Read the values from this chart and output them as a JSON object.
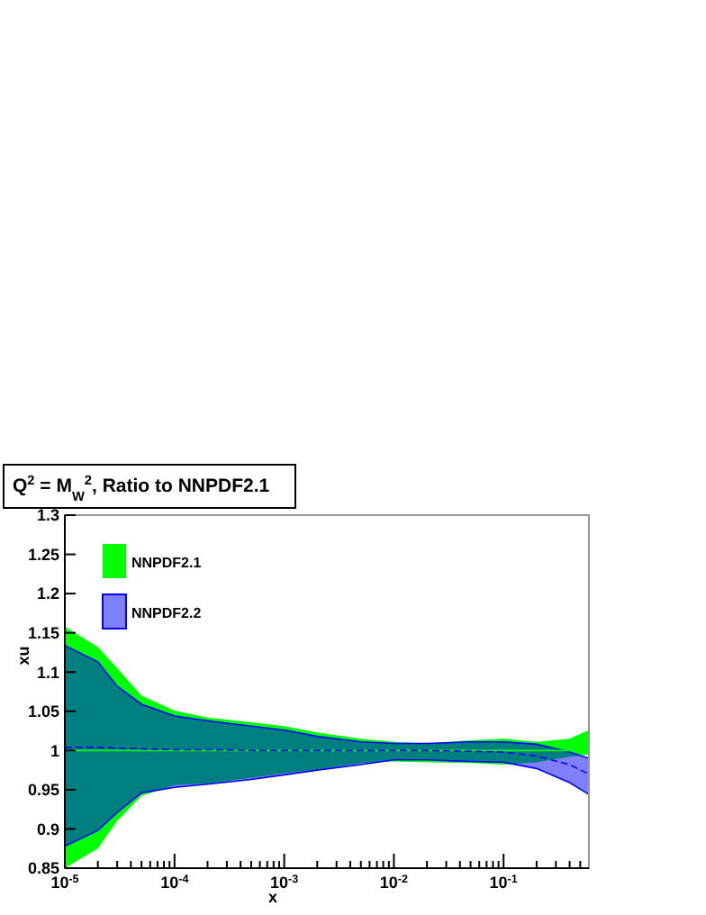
{
  "chart_data": {
    "type": "line",
    "title": "Q$^{2}$ = M$_{W}$$^{2}$, Ratio to NNPDF2.1",
    "xlabel": "x",
    "ylabel": "xu",
    "log": "x",
    "legend": "top left",
    "grid": false,
    "x": [
      1e-05,
      2e-05,
      3e-05,
      5e-05,
      0.0001,
      0.0002,
      0.0005,
      0.001,
      0.002,
      0.005,
      0.01,
      0.02,
      0.05,
      0.1,
      0.2,
      0.4,
      0.6
    ],
    "xlim": [
      1e-05,
      0.6
    ],
    "ylim": [
      0.85,
      1.3
    ],
    "xticks": [
      {
        "value": 1e-05,
        "label": "10$^{-5}$"
      },
      {
        "value": 2e-05,
        "label": null
      },
      {
        "value": 3e-05,
        "label": null
      },
      {
        "value": 4e-05,
        "label": null
      },
      {
        "value": 5e-05,
        "label": null
      },
      {
        "value": 6e-05,
        "label": null
      },
      {
        "value": 7e-05,
        "label": null
      },
      {
        "value": 8e-05,
        "label": null
      },
      {
        "value": 9e-05,
        "label": null
      },
      {
        "value": 0.0001,
        "label": "10$^{-4}$"
      },
      {
        "value": 0.0002,
        "label": null
      },
      {
        "value": 0.0003,
        "label": null
      },
      {
        "value": 0.0004,
        "label": null
      },
      {
        "value": 0.0005,
        "label": null
      },
      {
        "value": 0.0006,
        "label": null
      },
      {
        "value": 0.0007,
        "label": null
      },
      {
        "value": 0.0008,
        "label": null
      },
      {
        "value": 0.0009,
        "label": null
      },
      {
        "value": 0.001,
        "label": "10$^{-3}$"
      },
      {
        "value": 0.002,
        "label": null
      },
      {
        "value": 0.003,
        "label": null
      },
      {
        "value": 0.004,
        "label": null
      },
      {
        "value": 0.005,
        "label": null
      },
      {
        "value": 0.006,
        "label": null
      },
      {
        "value": 0.007,
        "label": null
      },
      {
        "value": 0.008,
        "label": null
      },
      {
        "value": 0.009,
        "label": null
      },
      {
        "value": 0.01,
        "label": "10$^{-2}$"
      },
      {
        "value": 0.02,
        "label": null
      },
      {
        "value": 0.03,
        "label": null
      },
      {
        "value": 0.04,
        "label": null
      },
      {
        "value": 0.05,
        "label": null
      },
      {
        "value": 0.06,
        "label": null
      },
      {
        "value": 0.07,
        "label": null
      },
      {
        "value": 0.08,
        "label": null
      },
      {
        "value": 0.09,
        "label": null
      },
      {
        "value": 0.1,
        "label": "10$^{-1}$"
      },
      {
        "value": 0.2,
        "label": null
      },
      {
        "value": 0.3,
        "label": null
      },
      {
        "value": 0.4,
        "label": null
      },
      {
        "value": 0.5,
        "label": null
      }
    ],
    "yticks": [
      0.85,
      0.9,
      0.95,
      1,
      1.05,
      1.1,
      1.15,
      1.2,
      1.25,
      1.3
    ],
    "series": [
      {
        "name": "NNPDF2.1",
        "color": "#00ff00",
        "line_style": "solid",
        "values": [
          1,
          1,
          1,
          1,
          1,
          1,
          1,
          1,
          1,
          1,
          1,
          1,
          1,
          1,
          1,
          1,
          1
        ],
        "lower": [
          0.85,
          0.875,
          0.91,
          0.942,
          0.956,
          0.958,
          0.965,
          0.971,
          0.976,
          0.984,
          0.986,
          0.985,
          0.984,
          0.982,
          0.985,
          0.992,
          0.995
        ],
        "upper": [
          1.158,
          1.132,
          1.105,
          1.07,
          1.051,
          1.042,
          1.036,
          1.031,
          1.023,
          1.015,
          1.011,
          1.009,
          1.013,
          1.015,
          1.011,
          1.015,
          1.026
        ]
      },
      {
        "name": "NNPDF2.2",
        "color": "#0000ff",
        "line_style": "dashed",
        "values": [
          1.004,
          1.004,
          1.003,
          1.002,
          1.001,
          1.001,
          1,
          1,
          1,
          1,
          1,
          1,
          0.999,
          0.998,
          0.993,
          0.982,
          0.97
        ],
        "lower": [
          0.878,
          0.898,
          0.921,
          0.946,
          0.953,
          0.957,
          0.963,
          0.969,
          0.975,
          0.982,
          0.988,
          0.988,
          0.986,
          0.985,
          0.977,
          0.959,
          0.944
        ],
        "upper": [
          1.134,
          1.113,
          1.082,
          1.059,
          1.044,
          1.038,
          1.031,
          1.026,
          1.018,
          1.011,
          1.009,
          1.009,
          1.011,
          1.011,
          1.008,
          0.998,
          0.99
        ]
      }
    ]
  }
}
